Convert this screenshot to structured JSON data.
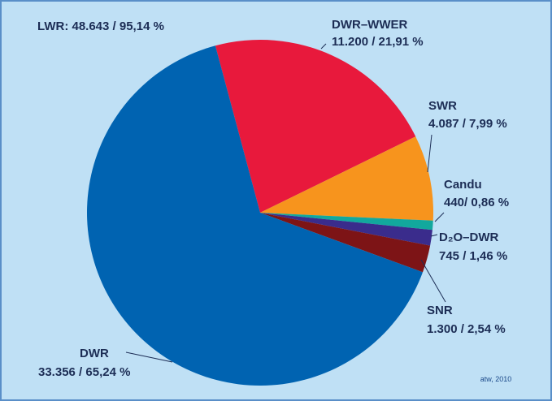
{
  "chart_data": {
    "type": "pie",
    "annotations": [
      "LWR: 48.643 / 95,14 %",
      "atw, 2010"
    ],
    "categories": [
      "DWR–WWER",
      "SWR",
      "Candu",
      "D₂O–DWR",
      "SNR",
      "DWR"
    ],
    "values": [
      21.91,
      7.99,
      0.86,
      1.46,
      2.54,
      65.24
    ],
    "value_labels": [
      "11.200 / 21,91 %",
      "4.087 / 7,99 %",
      "440/ 0,86 %",
      "745 / 1,46 %",
      "1.300 / 2,54 %",
      "33.356 / 65,24 %"
    ],
    "colors": [
      "#e8193c",
      "#f7941d",
      "#12a89d",
      "#3a2c8c",
      "#7d1416",
      "#0063b1"
    ]
  }
}
